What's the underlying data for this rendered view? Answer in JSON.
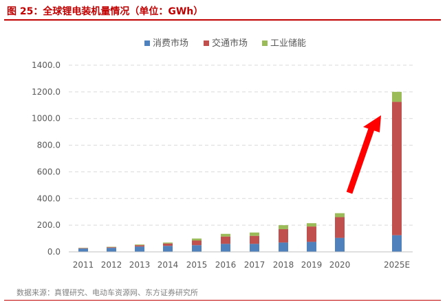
{
  "header": {
    "title": "图 25：全球锂电装机量情况（单位：GWh）"
  },
  "footer": {
    "source": "数据来源：真锂研究、电动车资源网、东方证券研究所"
  },
  "colors": {
    "accent": "#c00000",
    "consumer": "#4f81bd",
    "transport": "#c0504d",
    "industrial": "#9bbb59",
    "arrow": "#ff0000",
    "grid": "#d9d9d9"
  },
  "chart_data": {
    "type": "bar",
    "stacked": true,
    "categories": [
      "2011",
      "2012",
      "2013",
      "2014",
      "2015",
      "2016",
      "2017",
      "2018",
      "2019",
      "2020",
      "2025E"
    ],
    "series": [
      {
        "name": "消费市场",
        "color": "#4f81bd",
        "values": [
          25,
          30,
          40,
          45,
          50,
          60,
          60,
          70,
          75,
          105,
          125
        ]
      },
      {
        "name": "交通市场",
        "color": "#c0504d",
        "values": [
          3,
          5,
          10,
          18,
          35,
          55,
          60,
          100,
          115,
          155,
          1000
        ]
      },
      {
        "name": "工业储能",
        "color": "#9bbb59",
        "values": [
          2,
          3,
          5,
          7,
          15,
          20,
          25,
          30,
          25,
          30,
          75
        ]
      }
    ],
    "yticks": [
      "0.0",
      "200.0",
      "400.0",
      "600.0",
      "800.0",
      "1000.0",
      "1200.0",
      "1400.0"
    ],
    "ylim": [
      0,
      1400
    ],
    "grid": true,
    "legend_position": "top-center",
    "annotation": "red arrow pointing up to 2025E"
  }
}
